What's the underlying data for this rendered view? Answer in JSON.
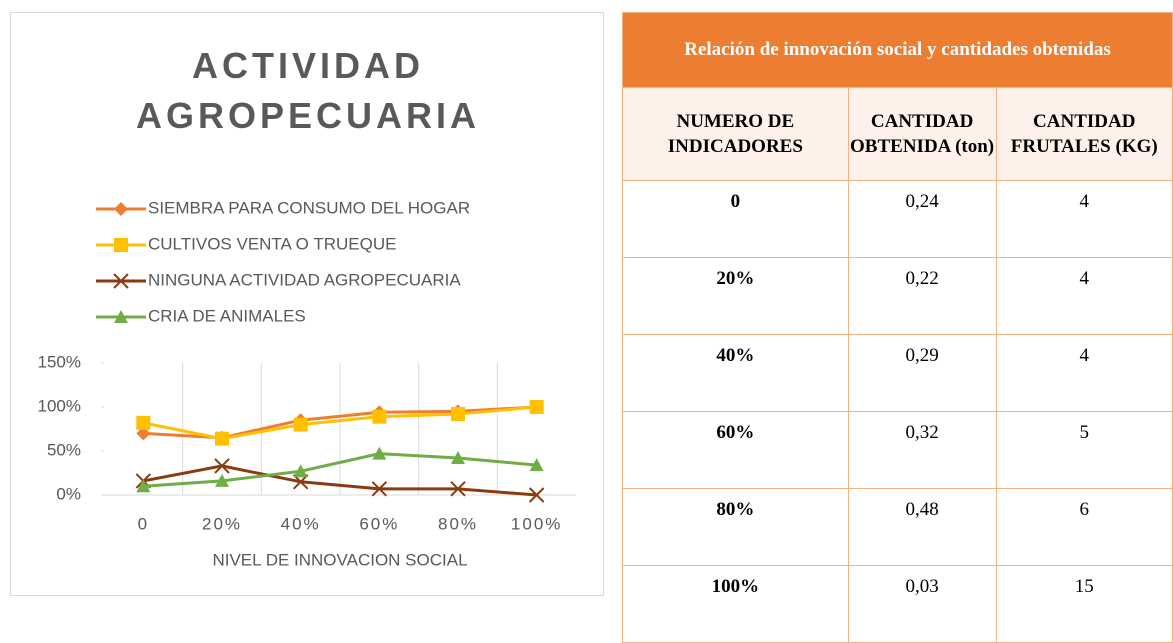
{
  "chart_data": {
    "type": "line",
    "title": "ACTIVIDAD AGROPECUARIA",
    "x_label": "NIVEL DE INNOVACION SOCIAL",
    "categories": [
      "0",
      "20%",
      "40%",
      "60%",
      "80%",
      "100%"
    ],
    "series": [
      {
        "name": "SIEMBRA PARA  CONSUMO DEL HOGAR",
        "color": "#ED7D31",
        "marker": "diamond",
        "values": [
          70,
          65,
          85,
          94,
          95,
          100
        ]
      },
      {
        "name": "CULTIVOS VENTA O TRUEQUE",
        "color": "#FFC000",
        "marker": "square",
        "values": [
          82,
          64,
          80,
          89,
          92,
          100
        ]
      },
      {
        "name": "NINGUNA ACTIVIDAD AGROPECUARIA",
        "color": "#8B3A0E",
        "marker": "x",
        "values": [
          16,
          33,
          15,
          7,
          7,
          0
        ]
      },
      {
        "name": "CRIA DE  ANIMALES",
        "color": "#70AD47",
        "marker": "triangle",
        "values": [
          10,
          16,
          27,
          47,
          42,
          34
        ]
      }
    ],
    "ylim": [
      0,
      150
    ],
    "yticks": [
      {
        "value": 0,
        "label": "0%"
      },
      {
        "value": 50,
        "label": "50%"
      },
      {
        "value": 100,
        "label": "100%"
      },
      {
        "value": 150,
        "label": "150%"
      }
    ]
  },
  "table": {
    "title": "Relación de innovación social y cantidades obtenidas",
    "header": [
      "NUMERO DE INDICADORES",
      "CANTIDAD OBTENIDA (ton)",
      "CANTIDAD FRUTALES (KG)"
    ],
    "rows": [
      [
        "0",
        "0,24",
        "4"
      ],
      [
        "20%",
        "0,22",
        "4"
      ],
      [
        "40%",
        "0,29",
        "4"
      ],
      [
        "60%",
        "0,32",
        "5"
      ],
      [
        "80%",
        "0,48",
        "6"
      ],
      [
        "100%",
        "0,03",
        "15"
      ]
    ]
  }
}
